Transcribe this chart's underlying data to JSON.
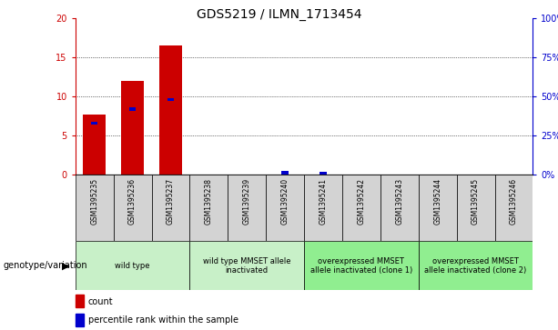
{
  "title": "GDS5219 / ILMN_1713454",
  "samples": [
    "GSM1395235",
    "GSM1395236",
    "GSM1395237",
    "GSM1395238",
    "GSM1395239",
    "GSM1395240",
    "GSM1395241",
    "GSM1395242",
    "GSM1395243",
    "GSM1395244",
    "GSM1395245",
    "GSM1395246"
  ],
  "counts": [
    7.7,
    12.0,
    16.5,
    0,
    0,
    0,
    0,
    0,
    0,
    0,
    0,
    0
  ],
  "percentiles_raw": [
    33,
    42,
    48,
    0,
    0,
    1.5,
    1.0,
    0,
    0,
    0,
    0,
    0
  ],
  "ylim_left": [
    0,
    20
  ],
  "ylim_right": [
    0,
    100
  ],
  "yticks_left": [
    0,
    5,
    10,
    15,
    20
  ],
  "yticks_right": [
    0,
    25,
    50,
    75,
    100
  ],
  "ytick_labels_left": [
    "0",
    "5",
    "10",
    "15",
    "20"
  ],
  "ytick_labels_right": [
    "0%",
    "25%",
    "50%",
    "75%",
    "100%"
  ],
  "bar_color": "#cc0000",
  "percentile_color": "#0000cc",
  "bg_color": "#ffffff",
  "cell_bg_color": "#d3d3d3",
  "groups": [
    {
      "label": "wild type",
      "start": 0,
      "end": 2,
      "color": "#c8f0c8"
    },
    {
      "label": "wild type MMSET allele\ninactivated",
      "start": 3,
      "end": 5,
      "color": "#c8f0c8"
    },
    {
      "label": "overexpressed MMSET\nallele inactivated (clone 1)",
      "start": 6,
      "end": 8,
      "color": "#90ee90"
    },
    {
      "label": "overexpressed MMSET\nallele inactivated (clone 2)",
      "start": 9,
      "end": 11,
      "color": "#90ee90"
    }
  ],
  "genotype_label": "genotype/variation",
  "legend_count_label": "count",
  "legend_pct_label": "percentile rank within the sample",
  "title_fontsize": 10,
  "tick_fontsize": 7,
  "sample_fontsize": 5.5,
  "group_fontsize": 6,
  "legend_fontsize": 7,
  "genotype_fontsize": 7
}
